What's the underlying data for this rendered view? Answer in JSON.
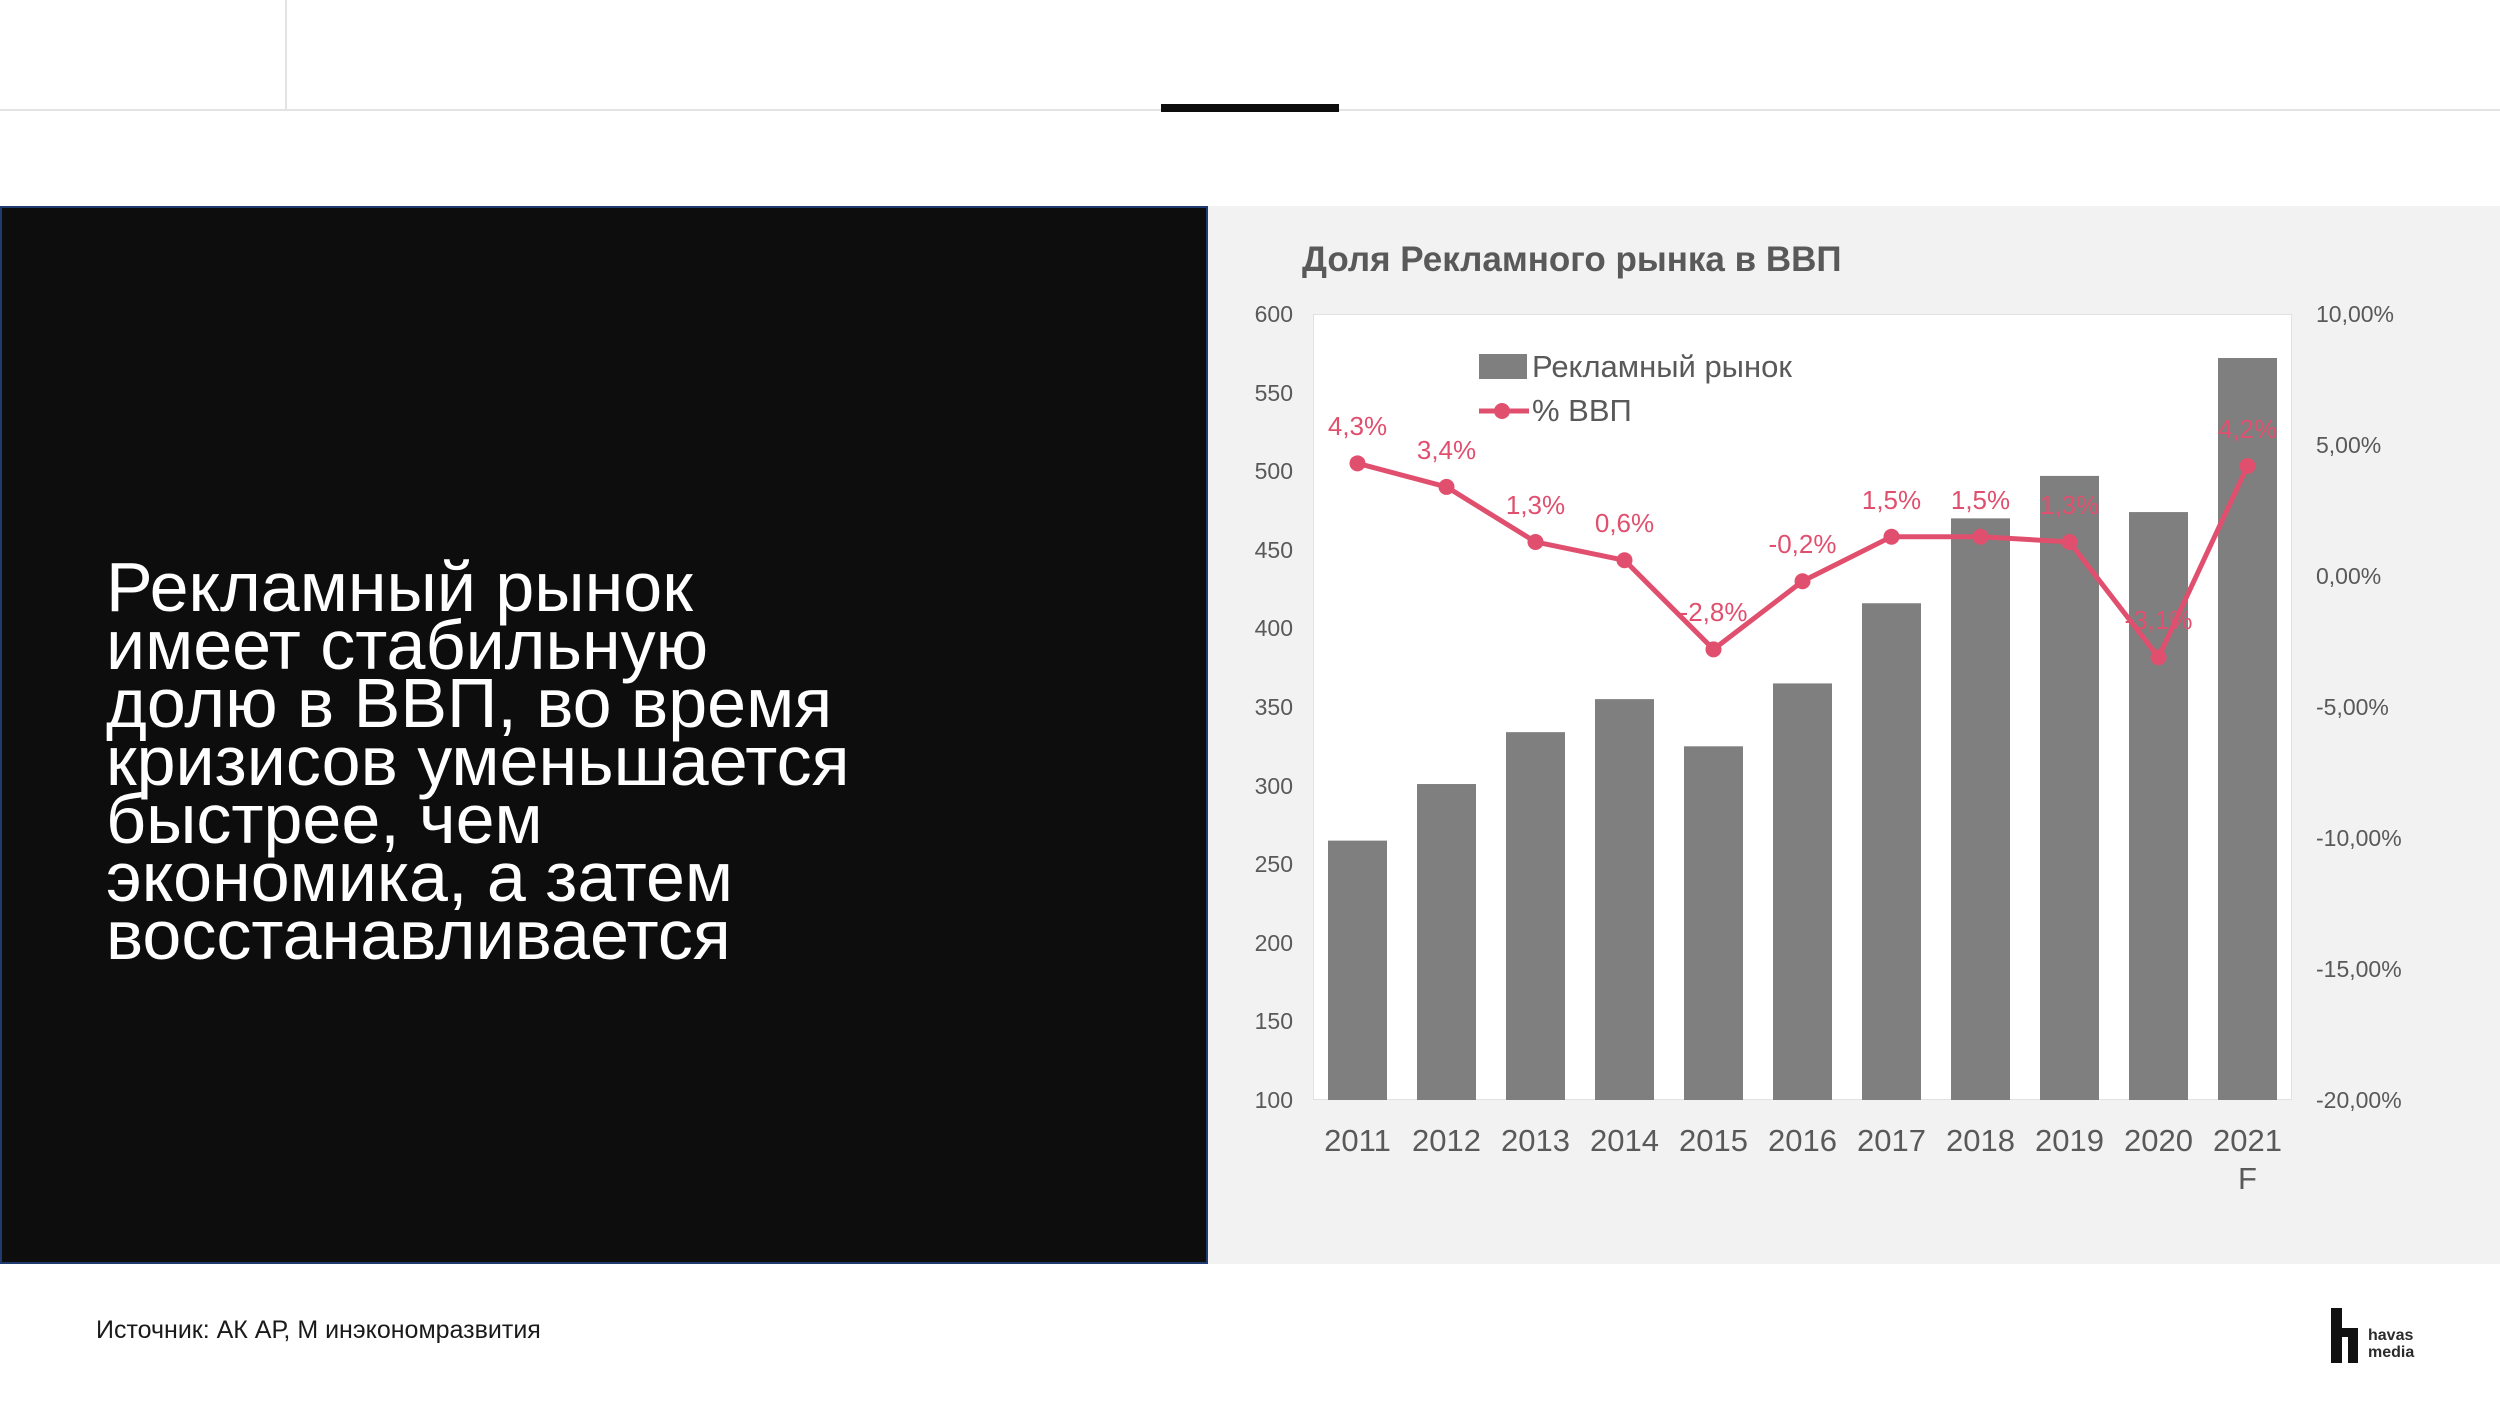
{
  "headline": {
    "lines": [
      "Рекламный рынок",
      "имеет стабильную",
      "долю в ВВП, во время",
      "кризисов уменьшается",
      "быстрее, чем",
      "экономика, а затем",
      "восстанавливается"
    ]
  },
  "chart_data": {
    "type": "bar",
    "title": "Доля Рекламного рынка в ВВП",
    "xlabel": "",
    "ylabel": "",
    "categories": [
      "2011",
      "2012",
      "2013",
      "2014",
      "2015",
      "2016",
      "2017",
      "2018",
      "2019",
      "2020",
      "2021 F"
    ],
    "series": [
      {
        "name": "Рекламный рынок",
        "type": "bar",
        "axis": "left",
        "color": "#7f7f7f",
        "values": [
          265,
          301,
          334,
          355,
          325,
          365,
          416,
          470,
          497,
          474,
          572
        ]
      },
      {
        "name": "% ВВП",
        "type": "line",
        "axis": "right",
        "color": "#e0506e",
        "values": [
          4.3,
          3.4,
          1.3,
          0.6,
          -2.8,
          -0.2,
          1.5,
          1.5,
          1.3,
          -3.1,
          4.2
        ],
        "labels": [
          "4,3%",
          "3,4%",
          "1,3%",
          "0,6%",
          "-2,8%",
          "-0,2%",
          "1,5%",
          "1,5%",
          "1,3%",
          "-3,1%",
          "4,2%"
        ]
      }
    ],
    "ylim": [
      100,
      600
    ],
    "yticks": [
      100,
      150,
      200,
      250,
      300,
      350,
      400,
      450,
      500,
      550,
      600
    ],
    "y2lim": [
      -20,
      10
    ],
    "y2ticks": [
      -20,
      -15,
      -10,
      -5,
      0,
      5,
      10
    ],
    "y2_tick_labels": [
      "-20,00%",
      "-15,00%",
      "-10,00%",
      "-5,00%",
      "0,00%",
      "5,00%",
      "10,00%"
    ],
    "grid": false,
    "legend": "top-left"
  },
  "footer": {
    "source": "Источник: АК АР, М инэкономразвития",
    "logo": {
      "line1": "havas",
      "line2": "media"
    }
  },
  "colors": {
    "panel_dark": "#0d0d0d",
    "panel_border": "#1f3b70",
    "chart_bg": "#f2f2f2",
    "bar": "#7f7f7f",
    "line": "#e0506e",
    "axis_text": "#595959"
  }
}
